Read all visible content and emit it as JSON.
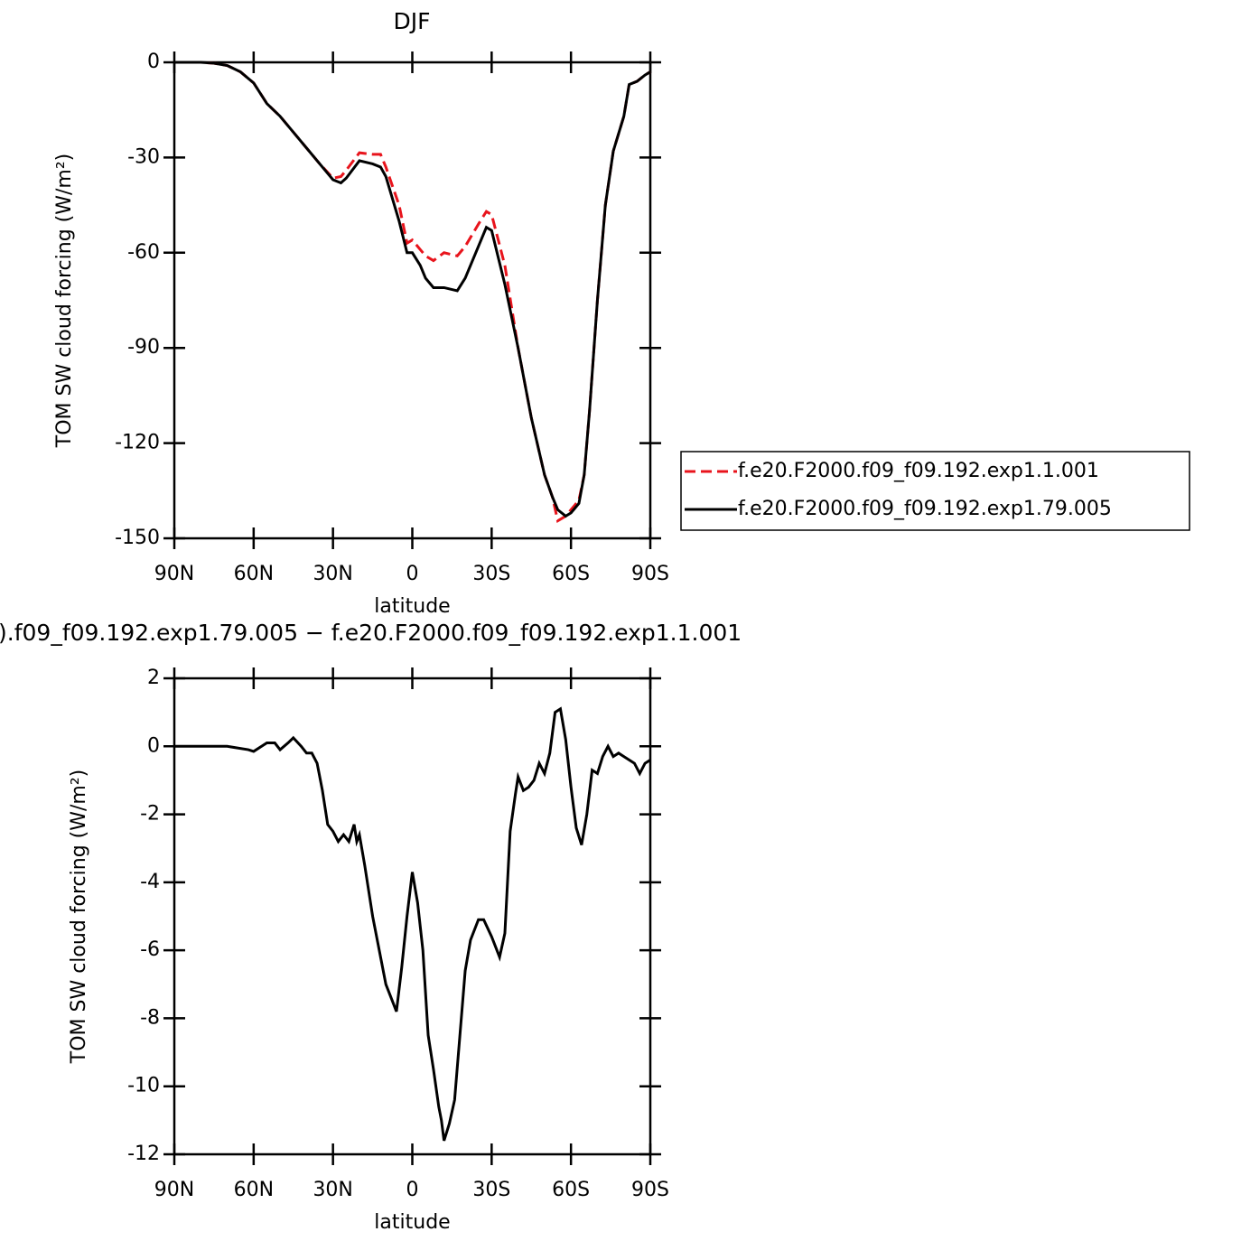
{
  "chart_data": [
    {
      "type": "line",
      "title": "DJF",
      "x_label": "latitude",
      "y_label": "TOM SW cloud forcing (W/m²)",
      "xlim": [
        90,
        -90
      ],
      "xticks": [
        {
          "value": 90,
          "label": "90N"
        },
        {
          "value": 60,
          "label": "60N"
        },
        {
          "value": 30,
          "label": "30N"
        },
        0,
        {
          "value": -30,
          "label": "30S"
        },
        {
          "value": -60,
          "label": "60S"
        },
        {
          "value": -90,
          "label": "90S"
        }
      ],
      "ylim": [
        -150,
        0
      ],
      "yticks": [
        0,
        -30,
        -60,
        -90,
        -120,
        -150
      ],
      "legend": "right",
      "x": [
        90,
        85,
        80,
        75,
        70,
        65,
        60,
        55,
        50,
        45,
        40,
        35,
        30,
        27,
        25,
        20,
        15,
        12,
        10,
        5,
        2,
        0,
        -3,
        -5,
        -8,
        -12,
        -17,
        -20,
        -25,
        -28,
        -30,
        -35,
        -40,
        -45,
        -50,
        -53,
        -55,
        -58,
        -60,
        -63,
        -65,
        -67,
        -70,
        -73,
        -76,
        -80,
        -82,
        -85,
        -88,
        -90
      ],
      "series": [
        {
          "name": "f.e20.F2000.f09_f09.192.exp1.1.001",
          "color": "#e8141c",
          "line_style": "dashed",
          "values": [
            0,
            0,
            0,
            -0.3,
            -1,
            -3,
            -6.5,
            -13,
            -17,
            -22,
            -27,
            -32,
            -36.5,
            -36,
            -34,
            -28.5,
            -29,
            -29,
            -33,
            -45,
            -57,
            -56,
            -59,
            -61,
            -62.5,
            -60,
            -61,
            -58,
            -51,
            -47,
            -48,
            -64,
            -90,
            -112,
            -130,
            -137,
            -144.5,
            -143,
            -141,
            -138,
            -130,
            -110,
            -75,
            -45,
            -28,
            -17,
            -7,
            -6,
            -4,
            -3
          ]
        },
        {
          "name": "f.e20.F2000.f09_f09.192.exp1.79.005",
          "color": "#000000",
          "line_style": "solid",
          "values": [
            0,
            0,
            0,
            -0.3,
            -1,
            -3,
            -6.5,
            -13,
            -17,
            -22,
            -27,
            -32,
            -37,
            -38,
            -36.5,
            -31,
            -32,
            -33,
            -36,
            -50,
            -60,
            -60,
            -64,
            -68,
            -71,
            -71,
            -72,
            -68,
            -58,
            -52,
            -53,
            -70,
            -90,
            -112,
            -130,
            -137,
            -141,
            -143,
            -142,
            -139,
            -130,
            -110,
            -75,
            -45,
            -28,
            -17,
            -7,
            -6,
            -4,
            -3
          ]
        }
      ]
    },
    {
      "type": "line",
      "title": ").f09_f09.192.exp1.79.005 − f.e20.F2000.f09_f09.192.exp1.1.001",
      "x_label": "latitude",
      "y_label": "TOM SW cloud forcing (W/m²)",
      "xlim": [
        90,
        -90
      ],
      "xticks": [
        {
          "value": 90,
          "label": "90N"
        },
        {
          "value": 60,
          "label": "60N"
        },
        {
          "value": 30,
          "label": "30N"
        },
        0,
        {
          "value": -30,
          "label": "30S"
        },
        {
          "value": -60,
          "label": "60S"
        },
        {
          "value": -90,
          "label": "90S"
        }
      ],
      "ylim": [
        -12,
        2
      ],
      "yticks": [
        2,
        0,
        -2,
        -4,
        -6,
        -8,
        -10,
        -12
      ],
      "x": [
        90,
        80,
        70,
        62,
        60,
        57,
        55,
        52,
        50,
        47,
        45,
        42,
        40,
        38,
        36,
        34,
        32,
        30,
        28,
        26,
        24,
        22,
        21,
        20,
        18,
        15,
        12,
        10,
        8,
        6,
        4,
        2,
        0,
        -2,
        -4,
        -6,
        -8,
        -10,
        -11,
        -12,
        -14,
        -16,
        -18,
        -20,
        -22,
        -25,
        -27,
        -30,
        -33,
        -35,
        -37,
        -39,
        -40,
        -42,
        -44,
        -46,
        -48,
        -50,
        -52,
        -54,
        -56,
        -58,
        -60,
        -62,
        -64,
        -66,
        -68,
        -70,
        -72,
        -74,
        -76,
        -78,
        -80,
        -82,
        -84,
        -86,
        -88,
        -90
      ],
      "series": [
        {
          "color": "#000000",
          "line_style": "solid",
          "values": [
            0,
            0,
            0,
            -0.1,
            -0.15,
            0,
            0.1,
            0.1,
            -0.1,
            0.1,
            0.25,
            0,
            -0.2,
            -0.2,
            -0.5,
            -1.3,
            -2.3,
            -2.5,
            -2.8,
            -2.6,
            -2.8,
            -2.3,
            -2.8,
            -2.6,
            -3.5,
            -5,
            -6.2,
            -7,
            -7.4,
            -7.8,
            -6.5,
            -5,
            -3.7,
            -4.6,
            -6,
            -8.5,
            -9.5,
            -10.6,
            -11,
            -11.6,
            -11.1,
            -10.4,
            -8.5,
            -6.6,
            -5.7,
            -5.1,
            -5.1,
            -5.6,
            -6.2,
            -5.5,
            -2.5,
            -1.4,
            -0.9,
            -1.3,
            -1.2,
            -1,
            -0.5,
            -0.8,
            -0.2,
            1,
            1.1,
            0.2,
            -1.2,
            -2.4,
            -2.9,
            -2,
            -0.7,
            -0.8,
            -0.3,
            0,
            -0.3,
            -0.2,
            -0.3,
            -0.4,
            -0.5,
            -0.8,
            -0.5,
            -0.4
          ]
        }
      ]
    }
  ]
}
